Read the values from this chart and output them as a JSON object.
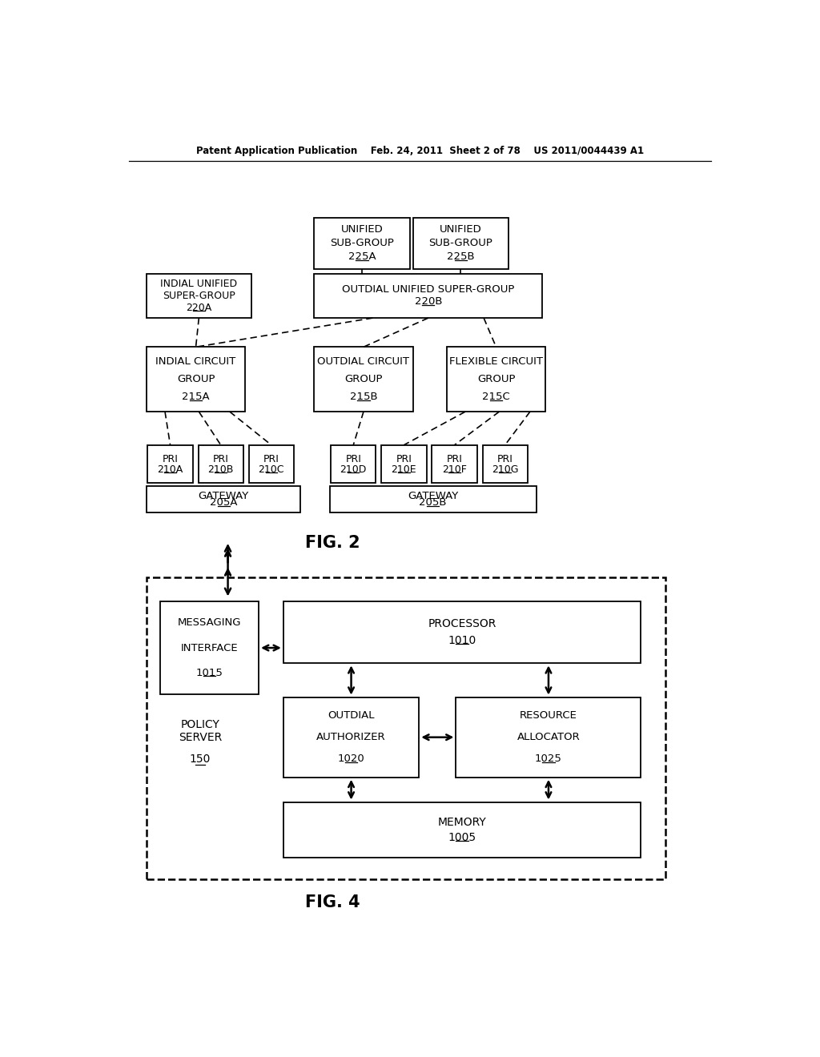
{
  "bg_color": "#ffffff",
  "header": "Patent Application Publication    Feb. 24, 2011  Sheet 2 of 78    US 2011/0044439 A1",
  "fig2_label": "FIG. 2",
  "fig4_label": "FIG. 4"
}
